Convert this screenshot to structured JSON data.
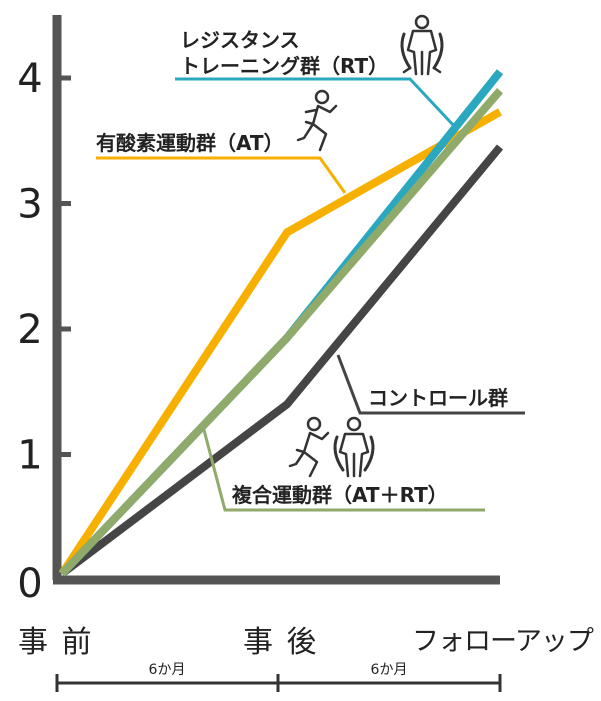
{
  "chart_data": {
    "type": "line",
    "categories": [
      "事 前",
      "事 後",
      "フォローアップ"
    ],
    "y_ticks": [
      "0",
      "1",
      "2",
      "3",
      "4"
    ],
    "ylim": [
      0,
      4.4
    ],
    "grid": false,
    "series": [
      {
        "name": "レジスタンス\nトレーニング群（RT）",
        "values": [
          0.05,
          1.93,
          4.05
        ],
        "color": "#2aa8bf"
      },
      {
        "name": "有酸素運動群（AT）",
        "values": [
          0.05,
          2.77,
          3.73
        ],
        "color": "#f7b000"
      },
      {
        "name": "複合運動群（AT＋RT）",
        "values": [
          0.05,
          1.93,
          3.9
        ],
        "color": "#8faa6a"
      },
      {
        "name": "コントロール群",
        "values": [
          0.05,
          1.4,
          3.45
        ],
        "color": "#454545"
      }
    ],
    "annotations": [
      {
        "line1": "レジスタンス",
        "line2": "トレーニング群（RT）"
      },
      {
        "line1": "有酸素運動群（AT）"
      },
      {
        "line1": "コントロール群"
      },
      {
        "line1": "複合運動群（AT＋RT）"
      }
    ],
    "periods": [
      "6か月",
      "6か月"
    ]
  },
  "icons": [
    "resistance-figure-icon",
    "running-figure-icon",
    "combined-figures-icon"
  ]
}
